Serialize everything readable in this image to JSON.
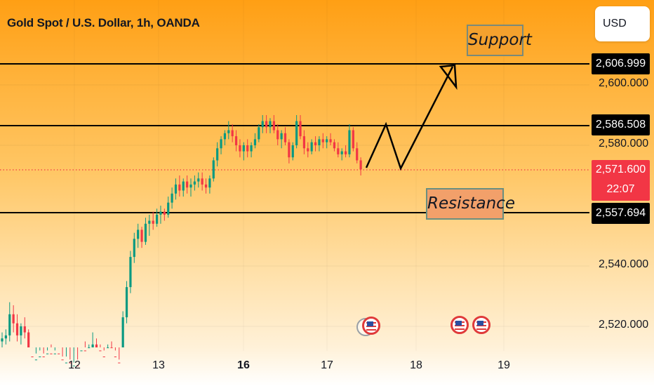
{
  "header": {
    "title": "Gold Spot / U.S. Dollar, 1h, OANDA",
    "currency": "USD"
  },
  "price_axis": {
    "ticks": [
      "2,600.000",
      "2,580.000",
      "2,540.000",
      "2,520.000"
    ]
  },
  "time_axis": {
    "ticks": [
      "12",
      "13",
      "16",
      "17",
      "18",
      "19"
    ],
    "bold_tick": "16"
  },
  "levels": {
    "line1": "2,606.999",
    "line2": "2,586.508",
    "line3": "2,557.694"
  },
  "current_price": {
    "value": "2,571.600",
    "countdown": "22:07"
  },
  "annotations": {
    "support": "Support",
    "resistance": "Resistance"
  },
  "colors": {
    "up": "#089981",
    "down": "#f23645",
    "level_line": "#000000",
    "current_line": "#f23645",
    "projection": "#000000"
  },
  "chart_data": {
    "type": "candlestick",
    "symbol": "XAUUSD",
    "interval": "1h",
    "ylim": [
      2510,
      2615
    ],
    "x_labels": [
      "12",
      "13",
      "16",
      "17",
      "18",
      "19"
    ],
    "levels": [
      2606.999,
      2586.508,
      2557.694
    ],
    "current_price": 2571.6,
    "candles": [
      [
        2515,
        2518,
        2512,
        2516
      ],
      [
        2516,
        2519,
        2514,
        2517
      ],
      [
        2517,
        2528,
        2515,
        2524
      ],
      [
        2524,
        2527,
        2518,
        2521
      ],
      [
        2521,
        2524,
        2515,
        2517
      ],
      [
        2517,
        2521,
        2514,
        2520
      ],
      [
        2520,
        2523,
        2516,
        2518
      ],
      [
        2518,
        2519,
        2508,
        2510
      ],
      [
        2510,
        2513,
        2505,
        2508
      ],
      [
        2508,
        2511,
        2505,
        2509
      ],
      [
        2509,
        2512,
        2507,
        2510
      ],
      [
        2510,
        2511,
        2505,
        2507
      ],
      [
        2507,
        2512,
        2505,
        2511
      ],
      [
        2511,
        2514,
        2507,
        2509
      ],
      [
        2509,
        2512,
        2506,
        2511
      ],
      [
        2511,
        2513,
        2507,
        2509
      ],
      [
        2509,
        2510,
        2504,
        2507
      ],
      [
        2507,
        2510,
        2504,
        2508
      ],
      [
        2508,
        2509,
        2503,
        2505
      ],
      [
        2505,
        2508,
        2502,
        2507
      ],
      [
        2507,
        2509,
        2504,
        2506
      ],
      [
        2506,
        2513,
        2505,
        2512
      ],
      [
        2512,
        2515,
        2508,
        2511
      ],
      [
        2511,
        2514,
        2509,
        2513
      ],
      [
        2513,
        2518,
        2510,
        2514
      ],
      [
        2514,
        2516,
        2510,
        2512
      ],
      [
        2512,
        2514,
        2508,
        2510
      ],
      [
        2510,
        2512,
        2506,
        2508
      ],
      [
        2508,
        2514,
        2507,
        2513
      ],
      [
        2513,
        2515,
        2508,
        2510
      ],
      [
        2510,
        2512,
        2506,
        2508
      ],
      [
        2508,
        2509,
        2504,
        2506
      ],
      [
        2506,
        2525,
        2505,
        2523
      ],
      [
        2523,
        2535,
        2521,
        2533
      ],
      [
        2533,
        2545,
        2531,
        2543
      ],
      [
        2543,
        2551,
        2541,
        2549
      ],
      [
        2549,
        2554,
        2546,
        2552
      ],
      [
        2552,
        2553,
        2546,
        2548
      ],
      [
        2548,
        2556,
        2547,
        2554
      ],
      [
        2554,
        2557,
        2550,
        2555
      ],
      [
        2555,
        2558,
        2552,
        2554
      ],
      [
        2554,
        2559,
        2553,
        2557
      ],
      [
        2557,
        2560,
        2554,
        2558
      ],
      [
        2558,
        2559,
        2555,
        2557
      ],
      [
        2557,
        2563,
        2556,
        2561
      ],
      [
        2561,
        2566,
        2559,
        2564
      ],
      [
        2564,
        2569,
        2562,
        2567
      ],
      [
        2567,
        2570,
        2563,
        2565
      ],
      [
        2565,
        2569,
        2563,
        2568
      ],
      [
        2568,
        2570,
        2564,
        2566
      ],
      [
        2566,
        2569,
        2563,
        2567
      ],
      [
        2567,
        2570,
        2565,
        2568
      ],
      [
        2568,
        2571,
        2566,
        2569
      ],
      [
        2569,
        2571,
        2565,
        2567
      ],
      [
        2567,
        2569,
        2564,
        2566
      ],
      [
        2566,
        2570,
        2564,
        2569
      ],
      [
        2569,
        2576,
        2568,
        2575
      ],
      [
        2575,
        2581,
        2573,
        2579
      ],
      [
        2579,
        2583,
        2577,
        2582
      ],
      [
        2582,
        2585,
        2580,
        2584
      ],
      [
        2584,
        2588,
        2582,
        2585
      ],
      [
        2585,
        2587,
        2581,
        2583
      ],
      [
        2583,
        2585,
        2578,
        2580
      ],
      [
        2580,
        2582,
        2576,
        2578
      ],
      [
        2578,
        2581,
        2575,
        2580
      ],
      [
        2580,
        2582,
        2576,
        2578
      ],
      [
        2578,
        2581,
        2576,
        2580
      ],
      [
        2580,
        2584,
        2579,
        2582
      ],
      [
        2582,
        2587,
        2581,
        2586
      ],
      [
        2586,
        2590,
        2584,
        2588
      ],
      [
        2588,
        2590,
        2584,
        2586
      ],
      [
        2586,
        2589,
        2584,
        2588
      ],
      [
        2588,
        2590,
        2584,
        2585
      ],
      [
        2585,
        2587,
        2580,
        2582
      ],
      [
        2582,
        2585,
        2579,
        2584
      ],
      [
        2584,
        2586,
        2580,
        2581
      ],
      [
        2581,
        2582,
        2574,
        2576
      ],
      [
        2576,
        2581,
        2575,
        2580
      ],
      [
        2580,
        2590,
        2579,
        2588
      ],
      [
        2588,
        2590,
        2582,
        2583
      ],
      [
        2583,
        2585,
        2577,
        2579
      ],
      [
        2579,
        2581,
        2576,
        2578
      ],
      [
        2578,
        2582,
        2577,
        2581
      ],
      [
        2581,
        2583,
        2578,
        2580
      ],
      [
        2580,
        2583,
        2578,
        2582
      ],
      [
        2582,
        2584,
        2579,
        2581
      ],
      [
        2581,
        2583,
        2579,
        2582
      ],
      [
        2582,
        2584,
        2580,
        2581
      ],
      [
        2581,
        2582,
        2578,
        2579
      ],
      [
        2579,
        2581,
        2576,
        2577
      ],
      [
        2577,
        2579,
        2575,
        2578
      ],
      [
        2578,
        2580,
        2576,
        2577
      ],
      [
        2577,
        2587,
        2576,
        2585
      ],
      [
        2585,
        2586,
        2578,
        2579
      ],
      [
        2579,
        2581,
        2574,
        2575
      ],
      [
        2575,
        2576,
        2570,
        2572
      ]
    ]
  }
}
